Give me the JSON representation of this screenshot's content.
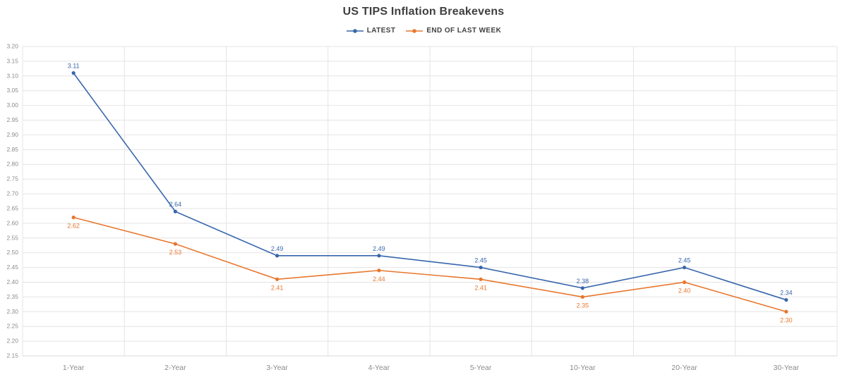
{
  "chart_data": {
    "type": "line",
    "title": "US TIPS Inflation Breakevens",
    "categories": [
      "1-Year",
      "2-Year",
      "3-Year",
      "4-Year",
      "5-Year",
      "10-Year",
      "20-Year",
      "30-Year"
    ],
    "series": [
      {
        "name": "LATEST",
        "color": "#3866ac",
        "values": [
          3.11,
          2.64,
          2.49,
          2.49,
          2.45,
          2.38,
          2.45,
          2.34
        ],
        "label_position": "above"
      },
      {
        "name": "END OF LAST WEEK",
        "color": "#e8772e",
        "values": [
          2.62,
          2.53,
          2.41,
          2.44,
          2.41,
          2.35,
          2.4,
          2.3
        ],
        "label_position": "below"
      }
    ],
    "xlabel": "",
    "ylabel": "",
    "ylim": [
      2.15,
      3.2
    ],
    "ytick_step": 0.05,
    "grid": true,
    "legend_position": "top",
    "colors": {
      "grid": "#e4e4e4",
      "axis_line": "#d9d9d9",
      "tick_label": "#8c8c8c",
      "title": "#404040",
      "legend_text": "#404040",
      "background": "#ffffff"
    }
  }
}
